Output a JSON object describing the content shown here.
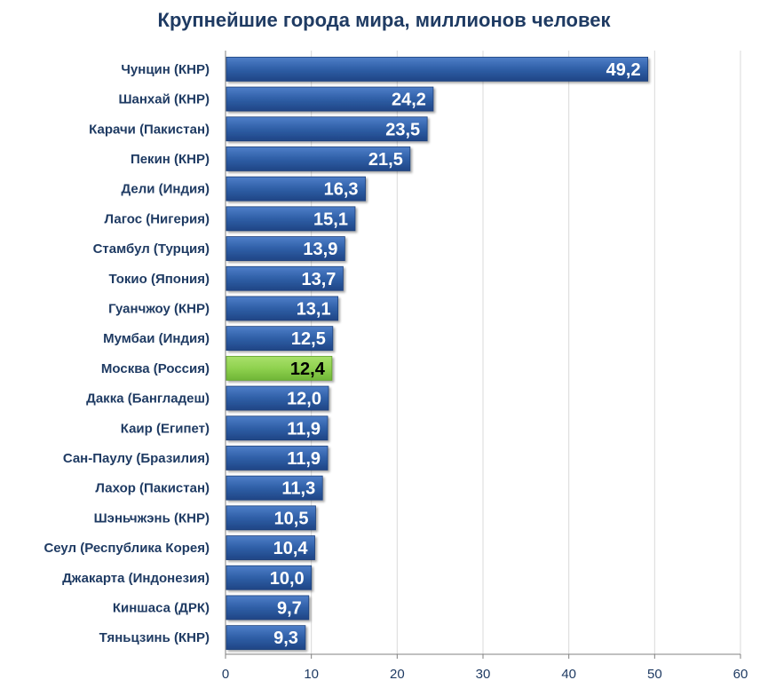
{
  "chart_data": {
    "type": "bar",
    "orientation": "horizontal",
    "title": "Крупнейшие города мира, миллионов человек",
    "xlabel": "",
    "ylabel": "",
    "xlim": [
      0,
      60
    ],
    "x_ticks": [
      0,
      10,
      20,
      30,
      40,
      50,
      60
    ],
    "grid": true,
    "legend": "none",
    "categories": [
      "Чунцин (КНР)",
      "Шанхай (КНР)",
      "Карачи (Пакистан)",
      "Пекин (КНР)",
      "Дели (Индия)",
      "Лагос (Нигерия)",
      "Стамбул (Турция)",
      "Токио (Япония)",
      "Гуанчжоу (КНР)",
      "Мумбаи (Индия)",
      "Москва (Россия)",
      "Дакка (Бангладеш)",
      "Каир (Египет)",
      "Сан-Паулу (Бразилия)",
      "Лахор (Пакистан)",
      "Шэньчжэнь (КНР)",
      "Сеул (Республика Корея)",
      "Джакарта (Индонезия)",
      "Киншаса (ДРК)",
      "Тяньцзинь (КНР)"
    ],
    "values": [
      49.2,
      24.2,
      23.5,
      21.5,
      16.3,
      15.1,
      13.9,
      13.7,
      13.1,
      12.5,
      12.4,
      12.0,
      11.9,
      11.9,
      11.3,
      10.5,
      10.4,
      10.0,
      9.7,
      9.3
    ],
    "value_labels": [
      "49,2",
      "24,2",
      "23,5",
      "21,5",
      "16,3",
      "15,1",
      "13,9",
      "13,7",
      "13,1",
      "12,5",
      "12,4",
      "12,0",
      "11,9",
      "11,9",
      "11,3",
      "10,5",
      "10,4",
      "10,0",
      "9,7",
      "9,3"
    ],
    "highlight_category": "Москва (Россия)",
    "colors": {
      "bar": "#2f5fa7",
      "bar_light": "#4f7fc9",
      "bar_dark": "#1f4585",
      "highlight": "#8fd14f",
      "highlight_light": "#a9e06b",
      "highlight_dark": "#6fb536",
      "label_text": "#ffffff",
      "highlight_label_text": "#000000",
      "grid": "#d9d9d9",
      "axis": "#808080",
      "title": "#1f3b63"
    }
  }
}
